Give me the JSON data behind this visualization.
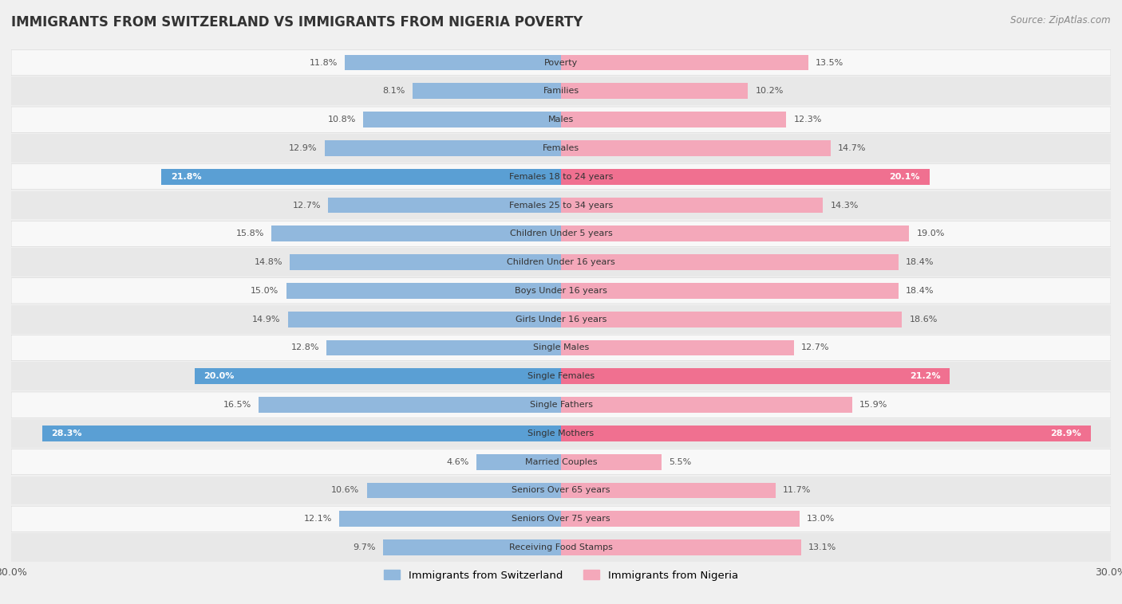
{
  "title": "IMMIGRANTS FROM SWITZERLAND VS IMMIGRANTS FROM NIGERIA POVERTY",
  "source": "Source: ZipAtlas.com",
  "categories": [
    "Poverty",
    "Families",
    "Males",
    "Females",
    "Females 18 to 24 years",
    "Females 25 to 34 years",
    "Children Under 5 years",
    "Children Under 16 years",
    "Boys Under 16 years",
    "Girls Under 16 years",
    "Single Males",
    "Single Females",
    "Single Fathers",
    "Single Mothers",
    "Married Couples",
    "Seniors Over 65 years",
    "Seniors Over 75 years",
    "Receiving Food Stamps"
  ],
  "switzerland_values": [
    11.8,
    8.1,
    10.8,
    12.9,
    21.8,
    12.7,
    15.8,
    14.8,
    15.0,
    14.9,
    12.8,
    20.0,
    16.5,
    28.3,
    4.6,
    10.6,
    12.1,
    9.7
  ],
  "nigeria_values": [
    13.5,
    10.2,
    12.3,
    14.7,
    20.1,
    14.3,
    19.0,
    18.4,
    18.4,
    18.6,
    12.7,
    21.2,
    15.9,
    28.9,
    5.5,
    11.7,
    13.0,
    13.1
  ],
  "switzerland_color": "#91b8dd",
  "nigeria_color": "#f4a8ba",
  "switzerland_highlight_color": "#5a9fd4",
  "nigeria_highlight_color": "#f07090",
  "highlight_indices": [
    4,
    11,
    13
  ],
  "background_color": "#f0f0f0",
  "row_color_light": "#f8f8f8",
  "row_color_dark": "#e8e8e8",
  "axis_limit": 30.0,
  "legend_switzerland": "Immigrants from Switzerland",
  "legend_nigeria": "Immigrants from Nigeria",
  "bar_height": 0.55,
  "value_fontsize": 8.0,
  "category_fontsize": 8.0,
  "title_fontsize": 12,
  "title_color": "#333333"
}
